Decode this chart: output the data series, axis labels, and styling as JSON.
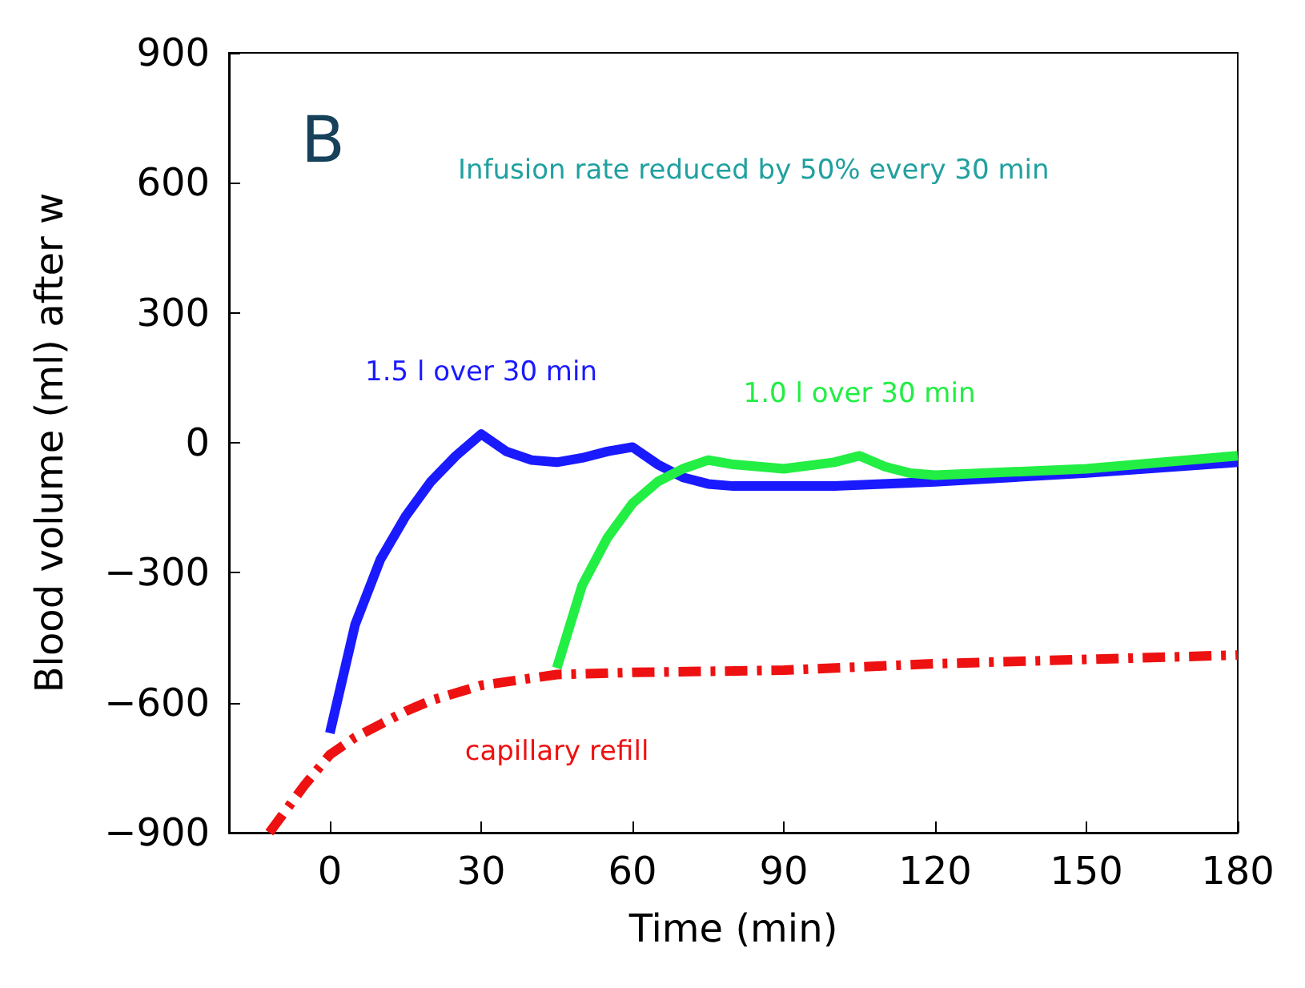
{
  "chart_data": {
    "type": "line",
    "title": "B",
    "ylabel": "Blood volume (ml) after w",
    "xlabel": "Time (min)",
    "annotations": [
      "Infusion rate reduced by 50% every 30 min"
    ],
    "xlim": [
      -20,
      180
    ],
    "xticks": [
      0,
      30,
      60,
      90,
      120,
      150,
      180
    ],
    "ylim": [
      -900,
      900
    ],
    "yticks": [
      -900,
      -600,
      -300,
      0,
      300,
      600,
      900
    ],
    "grid": false,
    "legend": false,
    "marker": "none",
    "series": [
      {
        "name": "1.5 l over 30 min",
        "color": "#1a1aff",
        "x": [
          0,
          5,
          10,
          15,
          20,
          25,
          30,
          35,
          40,
          45,
          50,
          55,
          60,
          65,
          70,
          75,
          80,
          90,
          100,
          120,
          150,
          180
        ],
        "values": [
          -670,
          -420,
          -270,
          -170,
          -90,
          -30,
          20,
          -20,
          -40,
          -45,
          -35,
          -20,
          -10,
          -50,
          -80,
          -95,
          -100,
          -100,
          -100,
          -90,
          -70,
          -45
        ]
      },
      {
        "name": "1.0 l over 30 min",
        "color": "#22ee44",
        "x": [
          45,
          50,
          55,
          60,
          65,
          70,
          75,
          80,
          90,
          100,
          105,
          110,
          115,
          120,
          150,
          180
        ],
        "values": [
          -520,
          -330,
          -220,
          -140,
          -90,
          -60,
          -40,
          -50,
          -60,
          -45,
          -30,
          -55,
          -70,
          -75,
          -60,
          -30
        ]
      },
      {
        "name": "capillary refill",
        "color": "#ee1111",
        "line_style": "dashed",
        "x": [
          -12,
          -5,
          0,
          5,
          10,
          15,
          20,
          30,
          45,
          60,
          90,
          120,
          150,
          180
        ],
        "values": [
          -900,
          -790,
          -720,
          -680,
          -650,
          -620,
          -595,
          -560,
          -535,
          -530,
          -525,
          -510,
          -500,
          -490
        ]
      }
    ]
  }
}
